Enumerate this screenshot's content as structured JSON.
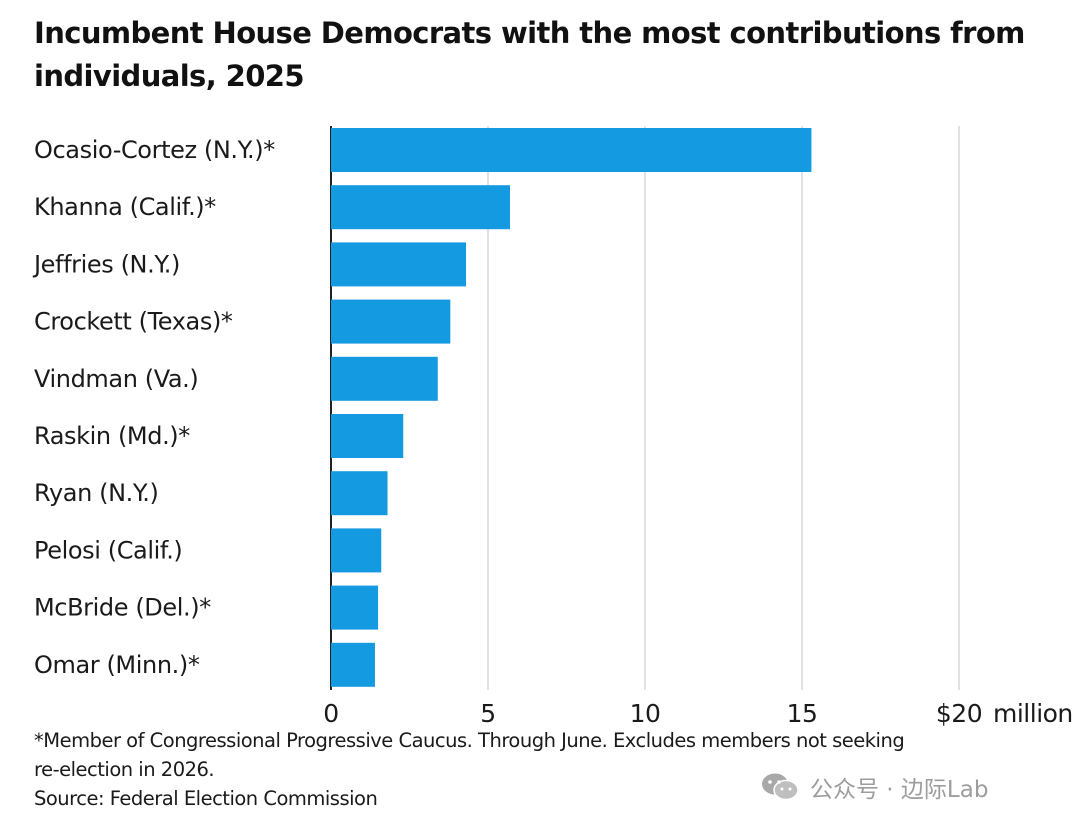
{
  "chart_data": {
    "type": "bar",
    "orientation": "horizontal",
    "title": "Incumbent House Democrats with the most contributions from individuals, 2025",
    "categories": [
      "Ocasio-Cortez (N.Y.)*",
      "Khanna (Calif.)*",
      "Jeffries (N.Y.)",
      "Crockett (Texas)*",
      "Vindman (Va.)",
      "Raskin (Md.)*",
      "Ryan (N.Y.)",
      "Pelosi (Calif.)",
      "McBride (Del.)*",
      "Omar (Minn.)*"
    ],
    "values": [
      15.3,
      5.7,
      4.3,
      3.8,
      3.4,
      2.3,
      1.8,
      1.6,
      1.5,
      1.4
    ],
    "xlim": [
      0,
      20
    ],
    "xticks": [
      0,
      5,
      10,
      15,
      20
    ],
    "xtick_labels": [
      "0",
      "5",
      "10",
      "15",
      "$20"
    ],
    "x_unit": "million",
    "grid": true,
    "bar_color": "#149ae0"
  },
  "footnote": {
    "line1": "*Member of Congressional Progressive Caucus. Through June. Excludes members not seeking",
    "line2": "re-election in 2026.",
    "source": "Source: Federal Election Commission"
  },
  "watermark": {
    "text": "公众号 · 边际Lab",
    "icon": "wechat-icon"
  }
}
